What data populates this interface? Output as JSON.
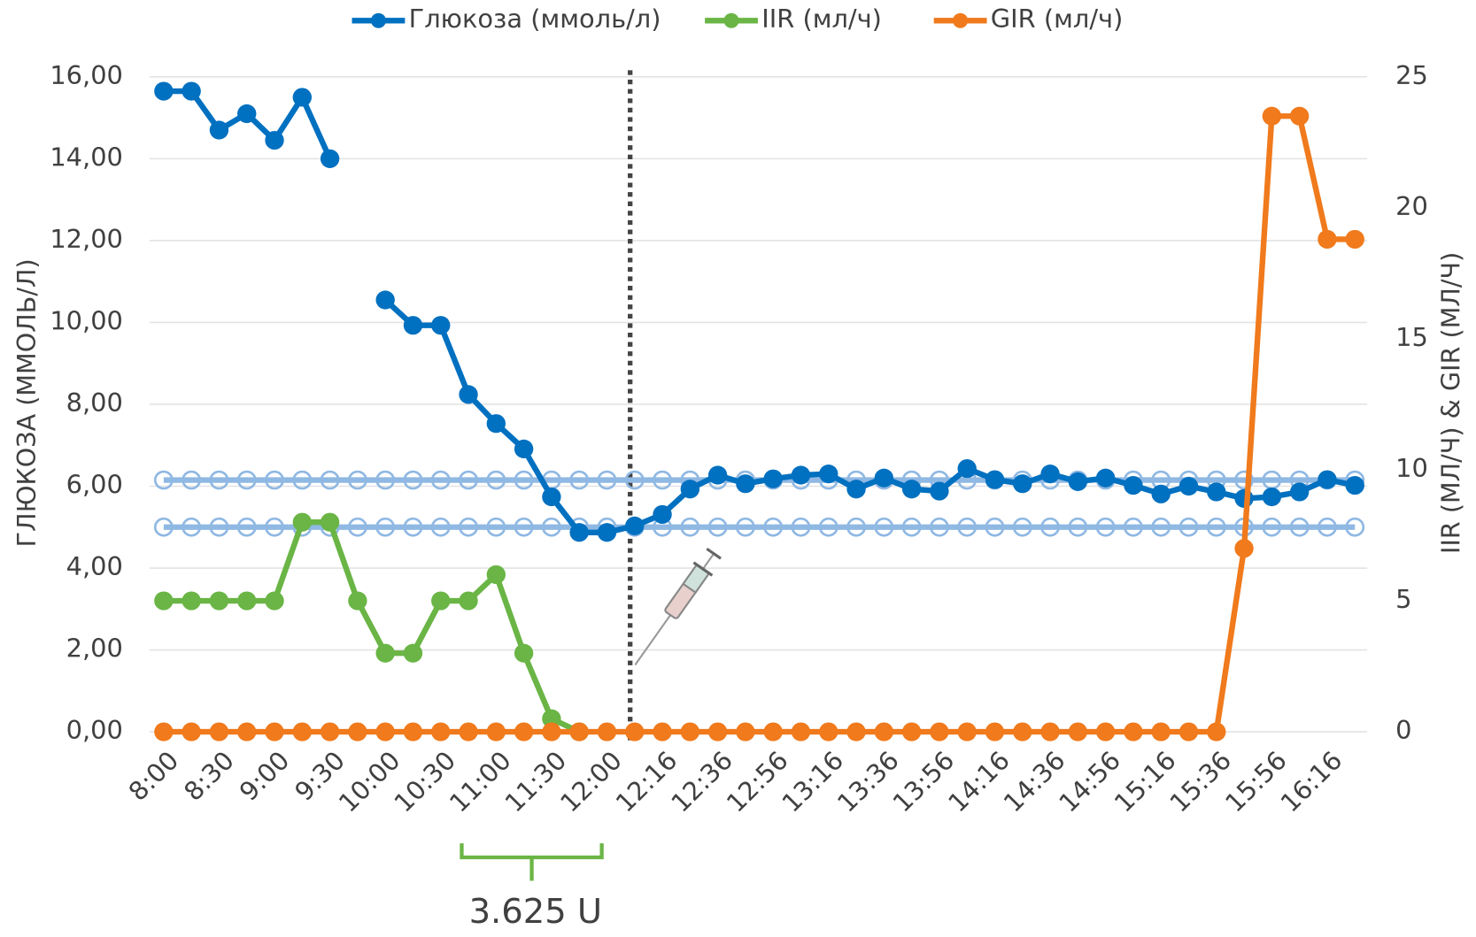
{
  "chart_data": {
    "type": "line",
    "categories": [
      "8:00",
      null,
      "8:30",
      null,
      "9:00",
      null,
      "9:30",
      null,
      "10:00",
      null,
      "10:30",
      null,
      "11:00",
      null,
      "11:30",
      null,
      "12:00",
      null,
      "12:16",
      null,
      "12:36",
      null,
      "12:56",
      null,
      "13:16",
      null,
      "13:36",
      null,
      "13:56",
      null,
      "14:16",
      null,
      "14:36",
      null,
      "14:56",
      null,
      "15:16",
      null,
      "15:36",
      null,
      "15:56",
      null,
      "16:16",
      null
    ],
    "series": [
      {
        "name": "Глюкоза (ммоль/л)",
        "color": "#0070c0",
        "axis": "y",
        "values": [
          15.65,
          15.65,
          14.7,
          15.1,
          14.45,
          15.5,
          14.0,
          null,
          10.55,
          9.93,
          9.93,
          8.24,
          7.53,
          6.91,
          5.74,
          4.87,
          4.87,
          5.03,
          5.31,
          5.93,
          6.27,
          6.06,
          6.18,
          6.27,
          6.3,
          5.93,
          6.2,
          5.93,
          5.88,
          6.43,
          6.16,
          6.06,
          6.3,
          6.11,
          6.2,
          6.02,
          5.81,
          6.0,
          5.86,
          5.7,
          5.74,
          5.86,
          6.16,
          6.02
        ]
      },
      {
        "name": "IIR (мл/ч)",
        "color": "#6ab545",
        "axis": "y2",
        "values": [
          5,
          5,
          5,
          5,
          5,
          8,
          8,
          5,
          3,
          3,
          5,
          5,
          6,
          3,
          0.5,
          0,
          null,
          null,
          null,
          null,
          null,
          null,
          null,
          null,
          null,
          null,
          null,
          null,
          null,
          null,
          null,
          null,
          null,
          null,
          null,
          null,
          null,
          null,
          null,
          null,
          null,
          null,
          null,
          null
        ]
      },
      {
        "name": "GIR (мл/ч)",
        "color": "#f07a1c",
        "axis": "y2",
        "values": [
          0,
          0,
          0,
          0,
          0,
          0,
          0,
          0,
          0,
          0,
          0,
          0,
          0,
          0,
          0,
          0,
          0,
          0,
          0,
          0,
          0,
          0,
          0,
          0,
          0,
          0,
          0,
          0,
          0,
          0,
          0,
          0,
          0,
          0,
          0,
          0,
          0,
          0,
          0,
          7,
          23.5,
          23.5,
          18.8,
          18.8
        ]
      }
    ],
    "target_lines": [
      {
        "value": 6.15,
        "color": "#8fb8e3"
      },
      {
        "value": 5.0,
        "color": "#8fb8e3"
      }
    ],
    "ylabel": "ГЛЮКОЗА (ММОЛЬ/Л)",
    "y2label": "IIR (МЛ/Ч) & GIR (МЛ/Ч)",
    "ylim": [
      0,
      16
    ],
    "yticks": [
      {
        "value": 0,
        "label": "0,00"
      },
      {
        "value": 2,
        "label": "2,00"
      },
      {
        "value": 4,
        "label": "4,00"
      },
      {
        "value": 6,
        "label": "6,00"
      },
      {
        "value": 8,
        "label": "8,00"
      },
      {
        "value": 10,
        "label": "10,00"
      },
      {
        "value": 12,
        "label": "12,00"
      },
      {
        "value": 14,
        "label": "14,00"
      },
      {
        "value": 16,
        "label": "16,00"
      }
    ],
    "y2lim": [
      0,
      25
    ],
    "y2ticks": [
      0,
      5,
      10,
      15,
      20,
      25
    ],
    "grid": true,
    "legend": "top",
    "annotation": "3.625 U"
  }
}
